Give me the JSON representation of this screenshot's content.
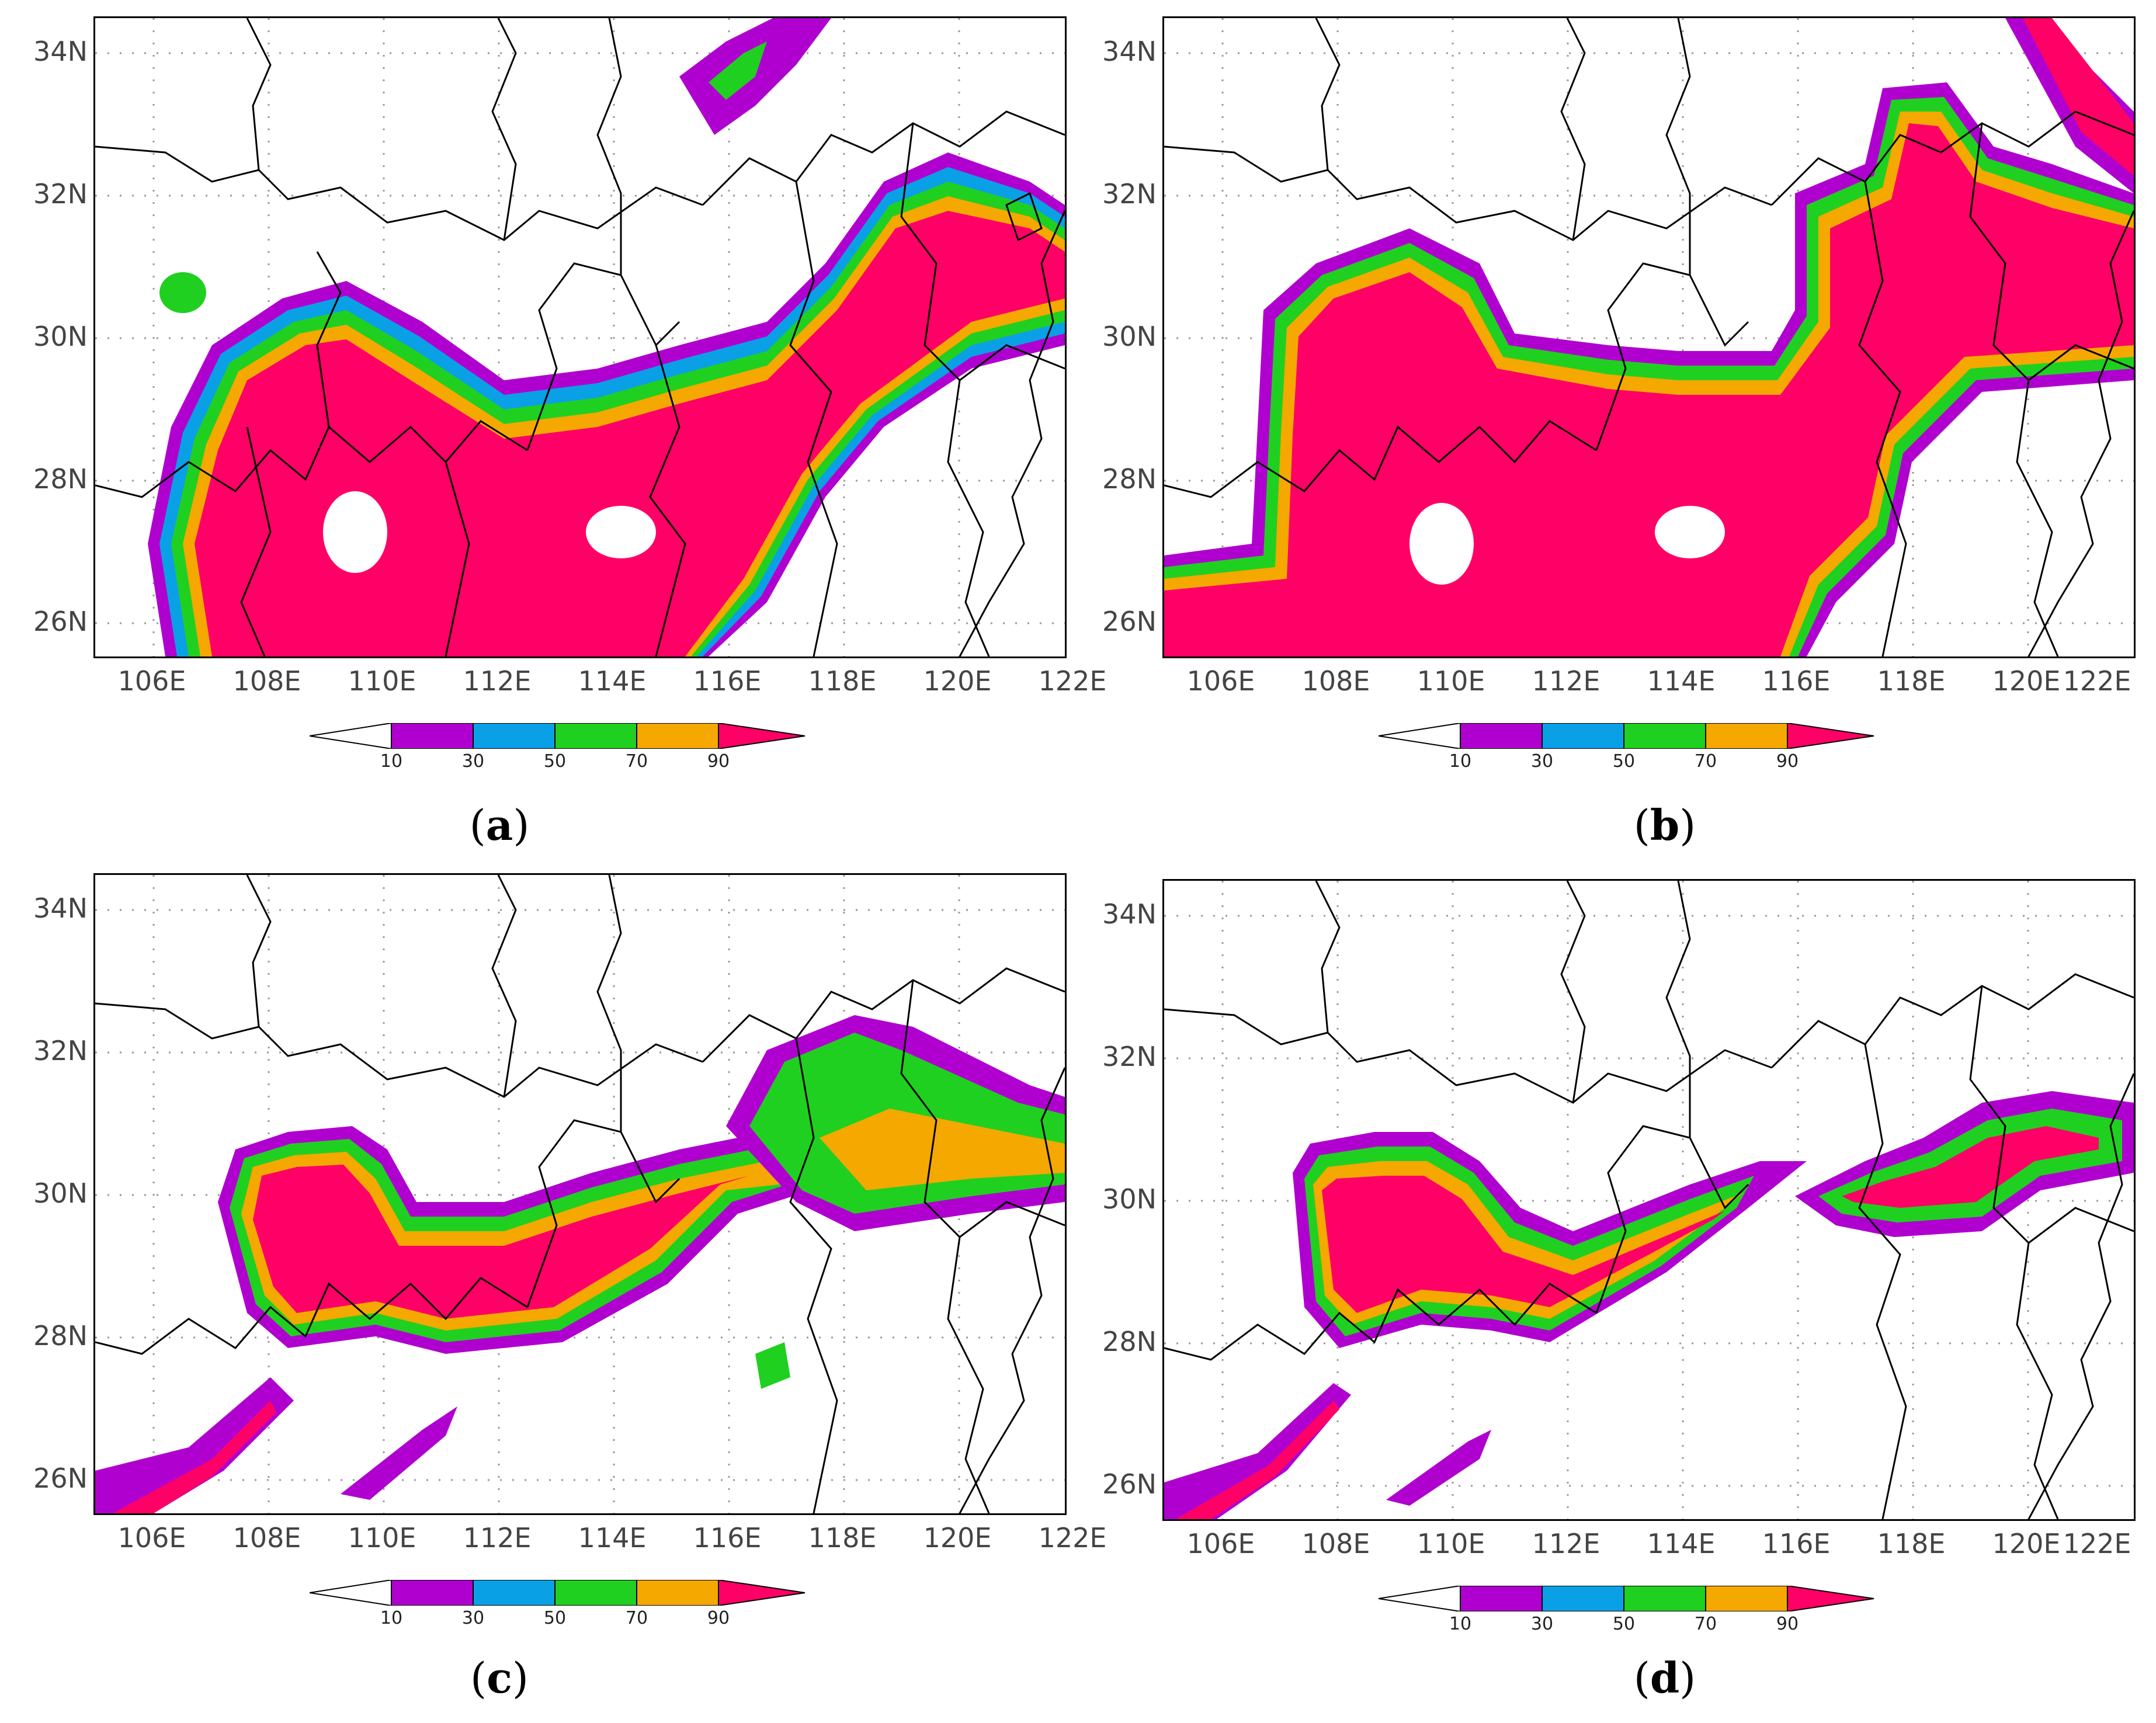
{
  "map_data": {
    "lat_ticks": [
      "34N",
      "32N",
      "30N",
      "28N",
      "26N"
    ],
    "lon_ticks": [
      "106E",
      "108E",
      "110E",
      "112E",
      "114E",
      "116E",
      "118E",
      "120E",
      "122E"
    ],
    "legend": {
      "levels": [
        "10",
        "30",
        "50",
        "70",
        "90"
      ],
      "colors": [
        "#ffffff",
        "#b000d0",
        "#0aa0e6",
        "#20d020",
        "#f5a800",
        "#ff0066"
      ]
    },
    "panels": [
      {
        "id": "a",
        "caption_open": "(",
        "caption_letter": "a",
        "caption_close": ")"
      },
      {
        "id": "b",
        "caption_open": "(",
        "caption_letter": "b",
        "caption_close": ")"
      },
      {
        "id": "c",
        "caption_open": "(",
        "caption_letter": "c",
        "caption_close": ")"
      },
      {
        "id": "d",
        "caption_open": "(",
        "caption_letter": "d",
        "caption_close": ")"
      }
    ]
  }
}
